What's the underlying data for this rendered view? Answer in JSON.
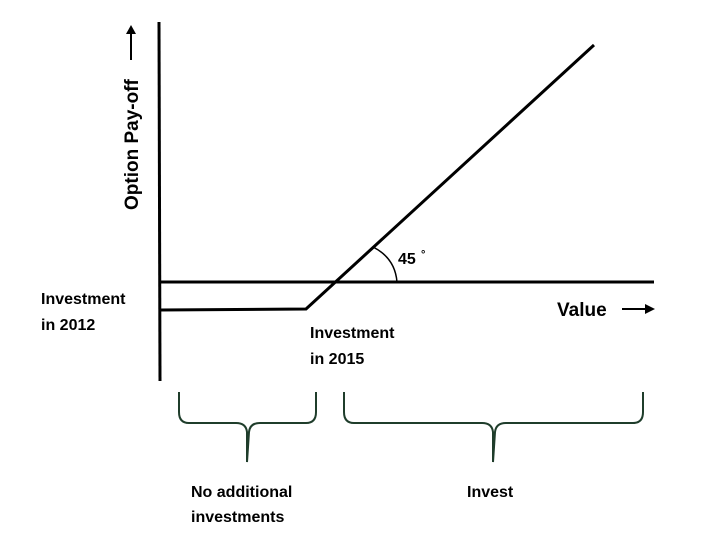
{
  "axes": {
    "y_label": "Option Pay-off",
    "x_label": "Value"
  },
  "angle": {
    "value": "45",
    "unit": "°"
  },
  "points": {
    "investment_2012": {
      "line1": "Investment",
      "line2": "in 2012"
    },
    "investment_2015": {
      "line1": "Investment",
      "line2": "in 2015"
    }
  },
  "regions": {
    "no_additional": {
      "line1": "No additional",
      "line2": "investments"
    },
    "invest": {
      "line1": "Invest"
    }
  },
  "colors": {
    "lines": "#000000",
    "braces": "#1f3d2b"
  }
}
